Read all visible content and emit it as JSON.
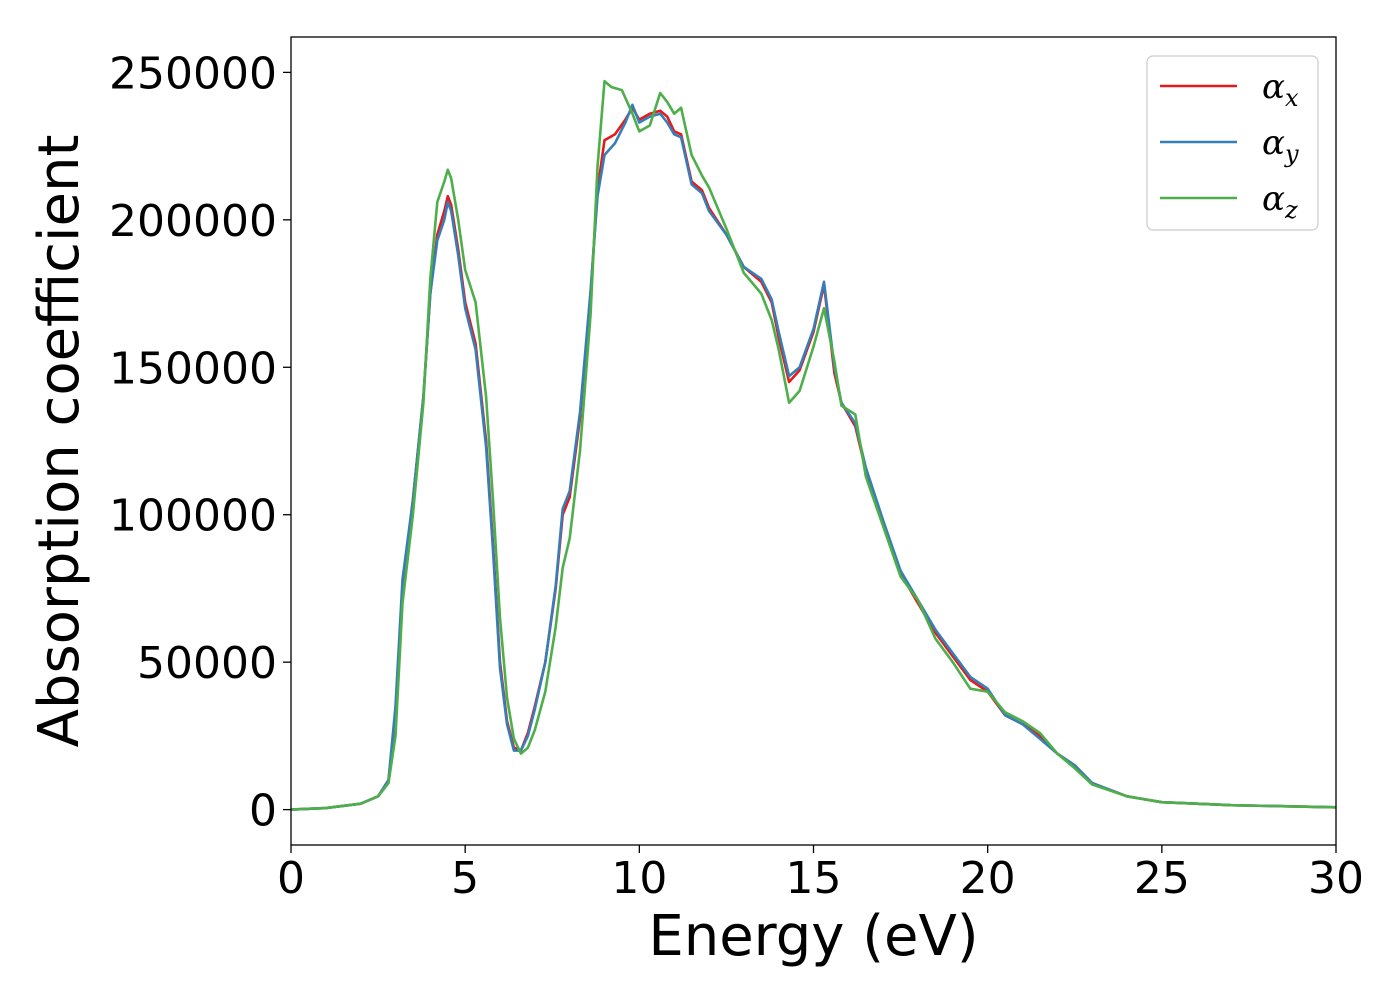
{
  "chart_data": {
    "type": "line",
    "title": "",
    "xlabel": "Energy (eV)",
    "ylabel": "Absorption coefficient",
    "xlim": [
      0,
      30
    ],
    "ylim": [
      -12000,
      262000
    ],
    "x_ticks": [
      0,
      5,
      10,
      15,
      20,
      25,
      30
    ],
    "y_ticks": [
      0,
      50000,
      100000,
      150000,
      200000,
      250000
    ],
    "grid": false,
    "legend_position": "top-right",
    "series": [
      {
        "name": "α_x",
        "legend_base": "α",
        "legend_sub": "x",
        "color": "#e41a1c",
        "points": [
          [
            0,
            0
          ],
          [
            1,
            500
          ],
          [
            2,
            2000
          ],
          [
            2.5,
            4500
          ],
          [
            2.8,
            10000
          ],
          [
            3.0,
            30000
          ],
          [
            3.2,
            75000
          ],
          [
            3.5,
            105000
          ],
          [
            3.8,
            140000
          ],
          [
            4.0,
            175000
          ],
          [
            4.2,
            195000
          ],
          [
            4.4,
            203000
          ],
          [
            4.5,
            208000
          ],
          [
            4.6,
            205000
          ],
          [
            4.8,
            190000
          ],
          [
            5.0,
            172000
          ],
          [
            5.3,
            158000
          ],
          [
            5.6,
            125000
          ],
          [
            5.8,
            90000
          ],
          [
            6.0,
            50000
          ],
          [
            6.2,
            30000
          ],
          [
            6.4,
            21000
          ],
          [
            6.6,
            20000
          ],
          [
            6.8,
            26000
          ],
          [
            7.0,
            35000
          ],
          [
            7.3,
            50000
          ],
          [
            7.6,
            75000
          ],
          [
            7.8,
            100000
          ],
          [
            8.0,
            106000
          ],
          [
            8.3,
            133000
          ],
          [
            8.6,
            175000
          ],
          [
            8.8,
            210000
          ],
          [
            9.0,
            227000
          ],
          [
            9.3,
            229000
          ],
          [
            9.6,
            234000
          ],
          [
            9.8,
            238000
          ],
          [
            10.0,
            234000
          ],
          [
            10.3,
            236000
          ],
          [
            10.6,
            237000
          ],
          [
            10.8,
            235000
          ],
          [
            11.0,
            230000
          ],
          [
            11.2,
            229000
          ],
          [
            11.5,
            213000
          ],
          [
            11.8,
            210000
          ],
          [
            12.0,
            204000
          ],
          [
            12.5,
            195000
          ],
          [
            13.0,
            184000
          ],
          [
            13.5,
            179000
          ],
          [
            13.8,
            172000
          ],
          [
            14.0,
            160000
          ],
          [
            14.3,
            145000
          ],
          [
            14.6,
            149000
          ],
          [
            15.0,
            162000
          ],
          [
            15.3,
            178000
          ],
          [
            15.6,
            148000
          ],
          [
            15.8,
            138000
          ],
          [
            16.2,
            130000
          ],
          [
            16.5,
            115000
          ],
          [
            17.0,
            97000
          ],
          [
            17.5,
            80000
          ],
          [
            18.0,
            70000
          ],
          [
            18.5,
            60000
          ],
          [
            19.0,
            52000
          ],
          [
            19.5,
            44000
          ],
          [
            20.0,
            40000
          ],
          [
            20.5,
            32000
          ],
          [
            21.0,
            29000
          ],
          [
            21.5,
            25000
          ],
          [
            22.0,
            19000
          ],
          [
            22.5,
            15000
          ],
          [
            23.0,
            9000
          ],
          [
            24.0,
            4500
          ],
          [
            25.0,
            2500
          ],
          [
            27.0,
            1500
          ],
          [
            30.0,
            800
          ]
        ]
      },
      {
        "name": "α_y",
        "legend_base": "α",
        "legend_sub": "y",
        "color": "#377eb8",
        "points": [
          [
            0,
            0
          ],
          [
            1,
            500
          ],
          [
            2,
            2000
          ],
          [
            2.5,
            4500
          ],
          [
            2.8,
            10000
          ],
          [
            3.0,
            35000
          ],
          [
            3.2,
            78000
          ],
          [
            3.5,
            105000
          ],
          [
            3.8,
            140000
          ],
          [
            4.0,
            175000
          ],
          [
            4.2,
            193000
          ],
          [
            4.4,
            200000
          ],
          [
            4.5,
            206000
          ],
          [
            4.6,
            203000
          ],
          [
            4.8,
            188000
          ],
          [
            5.0,
            170000
          ],
          [
            5.3,
            156000
          ],
          [
            5.6,
            123000
          ],
          [
            5.8,
            88000
          ],
          [
            6.0,
            48000
          ],
          [
            6.2,
            29000
          ],
          [
            6.4,
            20000
          ],
          [
            6.6,
            20000
          ],
          [
            6.8,
            25000
          ],
          [
            7.0,
            34000
          ],
          [
            7.3,
            50000
          ],
          [
            7.6,
            76000
          ],
          [
            7.8,
            102000
          ],
          [
            8.0,
            108000
          ],
          [
            8.3,
            135000
          ],
          [
            8.6,
            176000
          ],
          [
            8.8,
            208000
          ],
          [
            9.0,
            222000
          ],
          [
            9.3,
            226000
          ],
          [
            9.6,
            233000
          ],
          [
            9.8,
            239000
          ],
          [
            10.0,
            233000
          ],
          [
            10.3,
            235000
          ],
          [
            10.6,
            236000
          ],
          [
            10.8,
            233000
          ],
          [
            11.0,
            229000
          ],
          [
            11.2,
            228000
          ],
          [
            11.5,
            212000
          ],
          [
            11.8,
            209000
          ],
          [
            12.0,
            203000
          ],
          [
            12.5,
            195000
          ],
          [
            13.0,
            184000
          ],
          [
            13.5,
            180000
          ],
          [
            13.8,
            173000
          ],
          [
            14.0,
            162000
          ],
          [
            14.3,
            147000
          ],
          [
            14.6,
            150000
          ],
          [
            15.0,
            163000
          ],
          [
            15.3,
            179000
          ],
          [
            15.6,
            150000
          ],
          [
            15.8,
            138000
          ],
          [
            16.2,
            131000
          ],
          [
            16.5,
            116000
          ],
          [
            17.0,
            98000
          ],
          [
            17.5,
            81000
          ],
          [
            18.0,
            71000
          ],
          [
            18.5,
            61000
          ],
          [
            19.0,
            53000
          ],
          [
            19.5,
            45000
          ],
          [
            20.0,
            41000
          ],
          [
            20.5,
            32000
          ],
          [
            21.0,
            29000
          ],
          [
            21.5,
            24000
          ],
          [
            22.0,
            19000
          ],
          [
            22.5,
            15000
          ],
          [
            23.0,
            9000
          ],
          [
            24.0,
            4500
          ],
          [
            25.0,
            2500
          ],
          [
            27.0,
            1500
          ],
          [
            30.0,
            800
          ]
        ]
      },
      {
        "name": "α_z",
        "legend_base": "α",
        "legend_sub": "z",
        "color": "#4daf4a",
        "points": [
          [
            0,
            0
          ],
          [
            1,
            500
          ],
          [
            2,
            2000
          ],
          [
            2.5,
            4500
          ],
          [
            2.8,
            9000
          ],
          [
            3.0,
            25000
          ],
          [
            3.2,
            70000
          ],
          [
            3.5,
            100000
          ],
          [
            3.8,
            138000
          ],
          [
            4.0,
            180000
          ],
          [
            4.2,
            206000
          ],
          [
            4.4,
            213000
          ],
          [
            4.5,
            217000
          ],
          [
            4.6,
            214000
          ],
          [
            4.8,
            200000
          ],
          [
            5.0,
            183000
          ],
          [
            5.3,
            172000
          ],
          [
            5.6,
            140000
          ],
          [
            5.8,
            105000
          ],
          [
            6.0,
            65000
          ],
          [
            6.2,
            38000
          ],
          [
            6.4,
            24000
          ],
          [
            6.6,
            19000
          ],
          [
            6.8,
            21000
          ],
          [
            7.0,
            27000
          ],
          [
            7.3,
            40000
          ],
          [
            7.6,
            62000
          ],
          [
            7.8,
            82000
          ],
          [
            8.0,
            92000
          ],
          [
            8.3,
            122000
          ],
          [
            8.6,
            168000
          ],
          [
            8.8,
            218000
          ],
          [
            9.0,
            247000
          ],
          [
            9.2,
            245000
          ],
          [
            9.5,
            244000
          ],
          [
            9.8,
            236000
          ],
          [
            10.0,
            230000
          ],
          [
            10.3,
            232000
          ],
          [
            10.6,
            243000
          ],
          [
            10.8,
            240000
          ],
          [
            11.0,
            236000
          ],
          [
            11.2,
            238000
          ],
          [
            11.5,
            222000
          ],
          [
            11.8,
            215000
          ],
          [
            12.0,
            211000
          ],
          [
            12.5,
            197000
          ],
          [
            13.0,
            182000
          ],
          [
            13.5,
            175000
          ],
          [
            13.8,
            166000
          ],
          [
            14.0,
            156000
          ],
          [
            14.3,
            138000
          ],
          [
            14.6,
            142000
          ],
          [
            15.0,
            157000
          ],
          [
            15.3,
            170000
          ],
          [
            15.6,
            152000
          ],
          [
            15.8,
            137000
          ],
          [
            16.2,
            134000
          ],
          [
            16.5,
            113000
          ],
          [
            17.0,
            96000
          ],
          [
            17.5,
            79000
          ],
          [
            18.0,
            71000
          ],
          [
            18.5,
            58000
          ],
          [
            19.0,
            50000
          ],
          [
            19.5,
            41000
          ],
          [
            20.0,
            40000
          ],
          [
            20.5,
            33000
          ],
          [
            21.0,
            30000
          ],
          [
            21.5,
            26000
          ],
          [
            22.0,
            19000
          ],
          [
            22.5,
            14000
          ],
          [
            23.0,
            8500
          ],
          [
            24.0,
            4500
          ],
          [
            25.0,
            2500
          ],
          [
            27.0,
            1500
          ],
          [
            30.0,
            800
          ]
        ]
      }
    ]
  }
}
